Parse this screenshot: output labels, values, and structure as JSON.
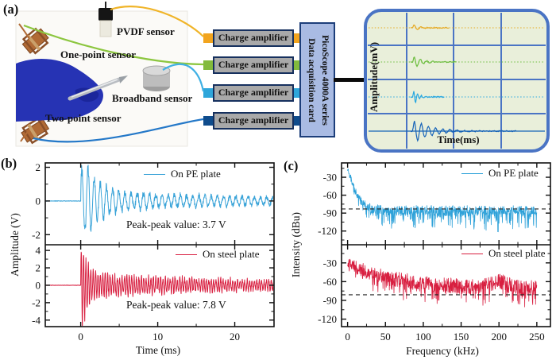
{
  "figure": {
    "panel_a": {
      "label": "(a)",
      "photo_labels": {
        "pvdf": "PVDF sensor",
        "one_point": "One-point sensor",
        "broadband": "Broadband sensor",
        "two_point": "Two-point sensor"
      },
      "amplifier_label": "Charge amplifier",
      "channel_colors": [
        "#f2a41e",
        "#82ba3c",
        "#2ea6da",
        "#0f4c8c"
      ],
      "daq_lines": [
        "Data acquisition card",
        "PicoScope 4000A series"
      ],
      "scope": {
        "ylabel": "Amplitude(mV)",
        "xlabel": "Time(ms)",
        "bg": "#e9efda",
        "border": "#4a74c4"
      }
    },
    "panel_b": {
      "label": "(b)",
      "annotation_top": "Peak-peak value: 3.7 V",
      "annotation_bottom": "Peak-peak value: 7.8 V"
    },
    "panel_c": {
      "label": "(c)"
    }
  },
  "chart_data": [
    {
      "id": "panel_b",
      "type": "line",
      "xlabel": "Time (ms)",
      "ylabel": "Amplitude (V)",
      "xlim": [
        -4.6,
        25.1
      ],
      "xticks": [
        0,
        10,
        20
      ],
      "xminor": [
        5,
        15
      ],
      "grid": false,
      "legend_position": "top-right",
      "subplots": [
        {
          "name": "On PE plate",
          "color": "#39a3d8",
          "ylim": [
            -2.6,
            2.26
          ],
          "yticks": [
            2,
            0,
            -2
          ],
          "yminor": [
            1,
            -1
          ],
          "peak_peak_v": 3.7,
          "signal": {
            "onset_ms": 0,
            "carrier_per_ms": 1.25,
            "envelope": [
              [
                0,
                1.85
              ],
              [
                0.9,
                2.0
              ],
              [
                2.2,
                1.15
              ],
              [
                4,
                0.7
              ],
              [
                7,
                0.45
              ],
              [
                12,
                0.33
              ],
              [
                18,
                0.28
              ],
              [
                25,
                0.22
              ]
            ],
            "noise": [
              [
                0,
                0.04
              ],
              [
                3,
                0.18
              ],
              [
                10,
                0.16
              ],
              [
                25,
                0.1
              ]
            ],
            "pre_noise": 0.015,
            "seed": 7
          }
        },
        {
          "name": "On steel plate",
          "color": "#d81f40",
          "ylim": [
            -4.75,
            4.65
          ],
          "yticks": [
            4,
            2,
            0,
            -2,
            -4
          ],
          "yminor": [
            3,
            1,
            -1,
            -3
          ],
          "peak_peak_v": 7.8,
          "signal": {
            "onset_ms": 0,
            "carrier_per_ms": 3.2,
            "envelope": [
              [
                0,
                3.6
              ],
              [
                0.2,
                4.5
              ],
              [
                0.7,
                2.7
              ],
              [
                1.5,
                1.6
              ],
              [
                3,
                1.15
              ],
              [
                8,
                0.9
              ],
              [
                15,
                0.7
              ],
              [
                25,
                0.5
              ]
            ],
            "noise": [
              [
                0,
                0.25
              ],
              [
                4,
                0.35
              ],
              [
                25,
                0.25
              ]
            ],
            "pre_noise": 0.02,
            "seed": 13
          }
        }
      ]
    },
    {
      "id": "panel_c",
      "type": "line",
      "xlabel": "Frequency (kHz)",
      "ylabel": "Intensity (dBu)",
      "xlim": [
        -8,
        268
      ],
      "xticks": [
        0,
        50,
        100,
        150,
        200,
        250
      ],
      "xminor": [
        25,
        75,
        125,
        175,
        225
      ],
      "data_range_khz": [
        0,
        250
      ],
      "grid": false,
      "legend_position": "top-right",
      "subplots": [
        {
          "name": "On PE plate",
          "color": "#2fa2d9",
          "ylim": [
            -143,
            -6
          ],
          "yticks": [
            -30,
            -60,
            -90,
            -120
          ],
          "yminor": [
            -15,
            -45,
            -75,
            -105,
            -135
          ],
          "noise_floor_dbu": -83,
          "spectrum": {
            "base": [
              [
                0,
                -16
              ],
              [
                2,
                -20
              ],
              [
                4,
                -30
              ],
              [
                7,
                -44
              ],
              [
                11,
                -55
              ],
              [
                16,
                -64
              ],
              [
                22,
                -74
              ],
              [
                30,
                -82
              ],
              [
                45,
                -85
              ],
              [
                250,
                -85
              ]
            ],
            "amp": [
              [
                0,
                5
              ],
              [
                20,
                7
              ],
              [
                35,
                8
              ],
              [
                250,
                8
              ]
            ],
            "deep": [
              [
                0,
                6
              ],
              [
                30,
                30
              ],
              [
                250,
                34
              ]
            ],
            "seed": 21
          }
        },
        {
          "name": "On steel plate",
          "color": "#d81f40",
          "ylim": [
            -132,
            -1
          ],
          "yticks": [
            -30,
            -60,
            -90,
            -120
          ],
          "yminor": [
            -15,
            -45,
            -75,
            -105
          ],
          "noise_floor_dbu": -81,
          "spectrum": {
            "base": [
              [
                0,
                -28
              ],
              [
                6,
                -33
              ],
              [
                12,
                -37
              ],
              [
                20,
                -41
              ],
              [
                32,
                -47
              ],
              [
                50,
                -54
              ],
              [
                75,
                -58
              ],
              [
                100,
                -61
              ],
              [
                130,
                -65
              ],
              [
                160,
                -69
              ],
              [
                185,
                -66
              ],
              [
                198,
                -58
              ],
              [
                210,
                -63
              ],
              [
                230,
                -70
              ],
              [
                250,
                -69
              ]
            ],
            "amp": [
              [
                0,
                9
              ],
              [
                40,
                12
              ],
              [
                250,
                12
              ]
            ],
            "deep": [
              [
                0,
                8
              ],
              [
                50,
                22
              ],
              [
                250,
                26
              ]
            ],
            "seed": 33
          }
        }
      ]
    },
    {
      "id": "scope_display",
      "type": "line",
      "xlabel": "Time(ms)",
      "ylabel": "Amplitude(mV)",
      "traces": [
        {
          "name": "pvdf-channel",
          "color": "#e6a81f",
          "amp": 5,
          "wavelength": 9,
          "decay": 7,
          "length": 45,
          "solid_baseline": false
        },
        {
          "name": "one-point-channel",
          "color": "#6cbd3e",
          "amp": 9,
          "wavelength": 8,
          "decay": 9,
          "length": 55,
          "solid_baseline": false
        },
        {
          "name": "broadband-channel",
          "color": "#27a7e0",
          "amp": 13,
          "wavelength": 5,
          "decay": 5,
          "length": 40,
          "solid_baseline": false
        },
        {
          "name": "two-point-channel",
          "color": "#1663b8",
          "amp": 15,
          "wavelength": 9,
          "decay": 22,
          "length": 130,
          "solid_baseline": true
        }
      ]
    }
  ]
}
